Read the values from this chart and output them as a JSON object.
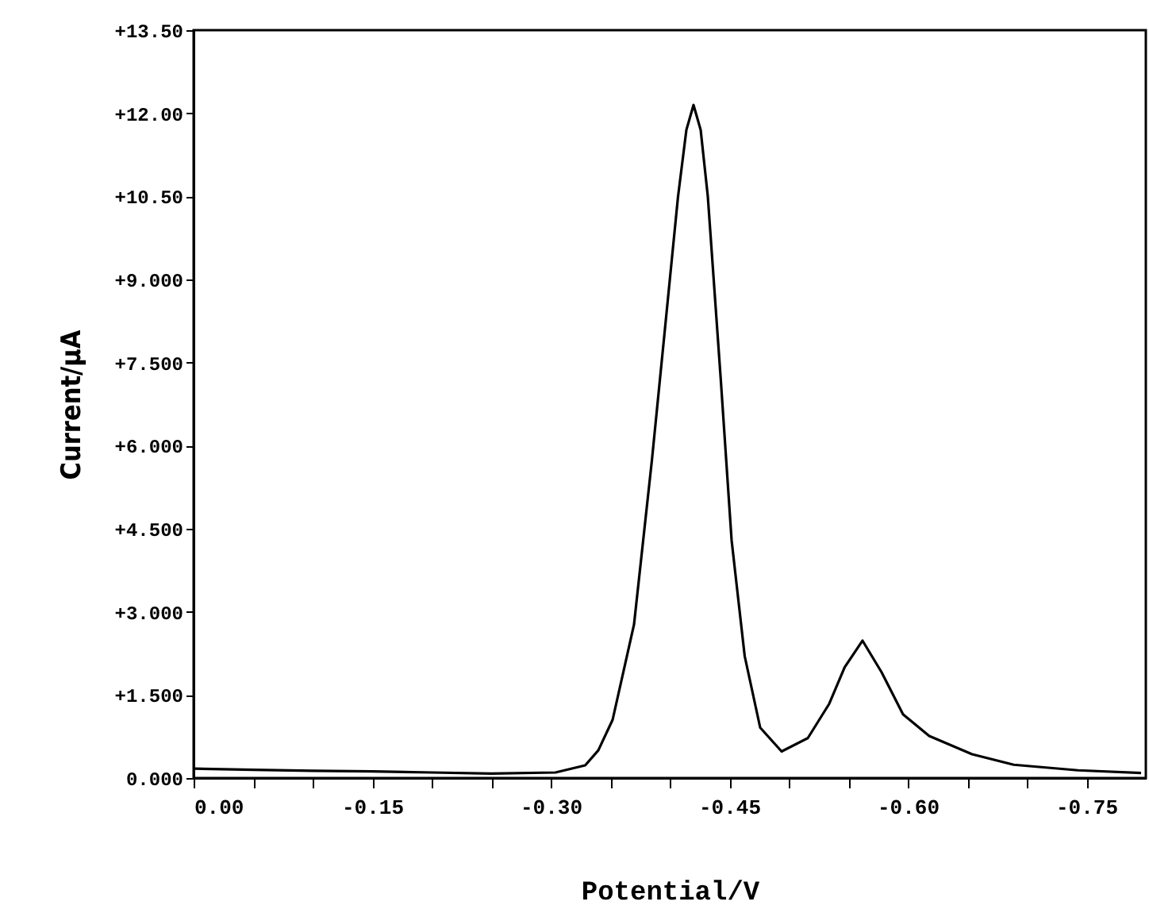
{
  "chart_data": {
    "type": "line",
    "xlabel": "Potential/V",
    "ylabel": "Current/µA",
    "xlim": [
      0,
      -0.8
    ],
    "ylim": [
      0,
      13.5
    ],
    "xticks": [
      {
        "value": 0,
        "label": "0.00"
      },
      {
        "value": -0.05,
        "label": null
      },
      {
        "value": -0.1,
        "label": null
      },
      -0.15,
      {
        "value": -0.2,
        "label": null
      },
      {
        "value": -0.25,
        "label": null
      },
      {
        "value": -0.3,
        "label": "-0.30"
      },
      {
        "value": -0.35,
        "label": null
      },
      {
        "value": -0.4,
        "label": null
      },
      -0.45,
      {
        "value": -0.5,
        "label": null
      },
      {
        "value": -0.55,
        "label": null
      },
      {
        "value": -0.6,
        "label": "-0.60"
      },
      {
        "value": -0.65,
        "label": null
      },
      {
        "value": -0.7,
        "label": null
      },
      -0.75
    ],
    "yticks": [
      {
        "value": 0,
        "label": "0.000"
      },
      {
        "value": 1.5,
        "label": "+1.500"
      },
      {
        "value": 3,
        "label": "+3.000"
      },
      {
        "value": 4.5,
        "label": "+4.500"
      },
      {
        "value": 6,
        "label": "+6.000"
      },
      {
        "value": 7.5,
        "label": "+7.500"
      },
      {
        "value": 9,
        "label": "+9.000"
      },
      {
        "value": 10.5,
        "label": "+10.50"
      },
      {
        "value": 12,
        "label": "+12.00"
      },
      {
        "value": 13.5,
        "label": "+13.50"
      }
    ],
    "grid": false,
    "marker": "none",
    "line_style": "solid",
    "series": [
      {
        "color": "#000000",
        "x": [
          0,
          -0.05,
          -0.1,
          -0.15,
          -0.2,
          -0.25,
          -0.304,
          -0.329,
          -0.34,
          -0.352,
          -0.37,
          -0.385,
          -0.396,
          -0.407,
          -0.414,
          -0.42,
          -0.426,
          -0.432,
          -0.443,
          -0.452,
          -0.463,
          -0.476,
          -0.494,
          -0.516,
          -0.534,
          -0.547,
          -0.562,
          -0.578,
          -0.596,
          -0.618,
          -0.654,
          -0.689,
          -0.743,
          -0.796
        ],
        "values": [
          0.17,
          0.15,
          0.13,
          0.12,
          0.1,
          0.08,
          0.1,
          0.23,
          0.5,
          1.05,
          2.77,
          5.73,
          8.11,
          10.5,
          11.7,
          12.15,
          11.7,
          10.5,
          7.16,
          4.29,
          2.2,
          0.91,
          0.48,
          0.72,
          1.34,
          2.0,
          2.48,
          1.91,
          1.15,
          0.76,
          0.43,
          0.24,
          0.14,
          0.09
        ]
      }
    ]
  }
}
